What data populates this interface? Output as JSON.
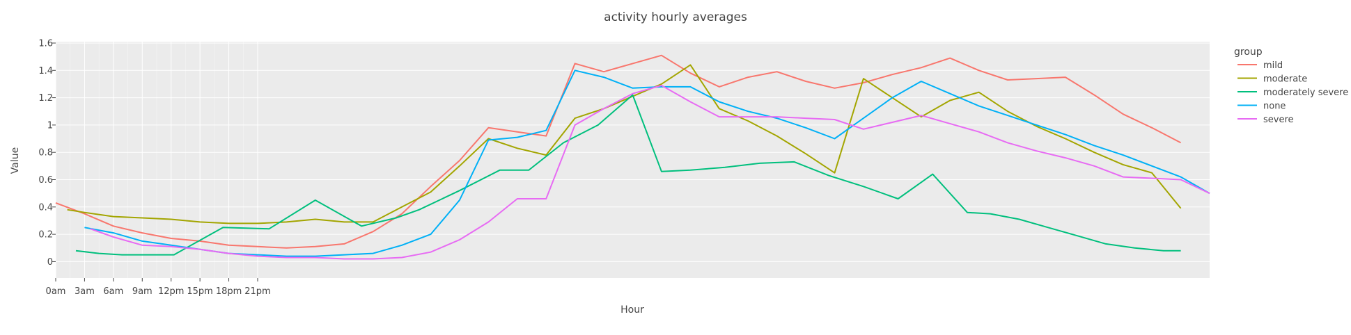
{
  "chart_data": {
    "type": "line",
    "title": "activity hourly averages",
    "xlabel": "Hour",
    "ylabel": "Value",
    "x_tick_labels": [
      "0am",
      "3am",
      "6am",
      "9am",
      "12pm",
      "15pm",
      "18pm",
      "21pm"
    ],
    "y_ticks": [
      0,
      0.2,
      0.4,
      0.6,
      0.8,
      1,
      1.2,
      1.4,
      1.6
    ],
    "y_tick_labels": [
      "0",
      "0.2",
      "0.4",
      "0.6",
      "0.8",
      "1",
      "1.2",
      "1.4",
      "1.6"
    ],
    "ylim": [
      -0.12,
      1.61
    ],
    "xlim": [
      0,
      40
    ],
    "legend": {
      "title": "group",
      "placement": "right"
    },
    "grid": true,
    "series": [
      {
        "name": "mild",
        "color": "#F8766D",
        "x": [
          0,
          1,
          2,
          3,
          4,
          5,
          6,
          7,
          8,
          9,
          10,
          11,
          12,
          13,
          14,
          15,
          16,
          17,
          18,
          19,
          20,
          21,
          22,
          23,
          24,
          25,
          26,
          27,
          28,
          29,
          30,
          31,
          32,
          33,
          34,
          35,
          36,
          37,
          38,
          39
        ],
        "values": [
          0.43,
          0.35,
          0.26,
          0.21,
          0.17,
          0.15,
          0.12,
          0.11,
          0.1,
          0.11,
          0.13,
          0.22,
          0.35,
          0.55,
          0.74,
          0.98,
          0.95,
          0.92,
          1.45,
          1.39,
          1.45,
          1.51,
          1.38,
          1.28,
          1.35,
          1.39,
          1.32,
          1.27,
          1.31,
          1.37,
          1.42,
          1.49,
          1.4,
          1.33,
          1.34,
          1.35,
          1.22,
          1.08,
          0.98,
          0.87
        ]
      },
      {
        "name": "moderate",
        "color": "#A3A500",
        "x": [
          0.4,
          1,
          2,
          3,
          4,
          5,
          6,
          7,
          8,
          9,
          10,
          11,
          12,
          13,
          14,
          15,
          16,
          17,
          18,
          19,
          20,
          21,
          22,
          23,
          24,
          25,
          26,
          27,
          28,
          29,
          30,
          31,
          32,
          33,
          34,
          35,
          36,
          37,
          38,
          39
        ],
        "values": [
          0.38,
          0.36,
          0.33,
          0.32,
          0.31,
          0.29,
          0.28,
          0.28,
          0.29,
          0.31,
          0.29,
          0.29,
          0.4,
          0.51,
          0.7,
          0.9,
          0.83,
          0.78,
          1.05,
          1.12,
          1.21,
          1.3,
          1.44,
          1.12,
          1.03,
          0.92,
          0.79,
          0.65,
          1.34,
          1.2,
          1.06,
          1.18,
          1.24,
          1.1,
          0.99,
          0.9,
          0.8,
          0.71,
          0.65,
          0.39
        ]
      },
      {
        "name": "moderately severe",
        "color": "#00BF7D",
        "x": [
          0.7,
          1.5,
          2.3,
          3.1,
          4.1,
          5.8,
          7.4,
          9.0,
          10.6,
          11.8,
          12.6,
          14.0,
          15.4,
          16.4,
          17.6,
          18.8,
          20.0,
          21.0,
          22.0,
          23.2,
          24.4,
          25.6,
          26.8,
          28.0,
          29.2,
          30.4,
          31.6,
          32.4,
          33.4,
          34.4,
          35.4,
          36.4,
          37.4,
          38.4,
          39.0
        ],
        "values": [
          0.08,
          0.06,
          0.05,
          0.05,
          0.05,
          0.25,
          0.24,
          0.45,
          0.26,
          0.32,
          0.38,
          0.52,
          0.67,
          0.67,
          0.87,
          1.0,
          1.22,
          0.66,
          0.67,
          0.69,
          0.72,
          0.73,
          0.63,
          0.55,
          0.46,
          0.64,
          0.36,
          0.35,
          0.31,
          0.25,
          0.19,
          0.13,
          0.1,
          0.08,
          0.08
        ]
      },
      {
        "name": "none",
        "color": "#00B0F6",
        "x": [
          1,
          2,
          3,
          4,
          5,
          6,
          7,
          8,
          9,
          10,
          11,
          12,
          13,
          14,
          15,
          16,
          17,
          18,
          19,
          20,
          21,
          22,
          23,
          24,
          25,
          26,
          27,
          28,
          29,
          30,
          31,
          32,
          33,
          34,
          35,
          36,
          37,
          38,
          39,
          40
        ],
        "values": [
          0.25,
          0.21,
          0.15,
          0.12,
          0.09,
          0.06,
          0.05,
          0.04,
          0.04,
          0.05,
          0.06,
          0.12,
          0.2,
          0.45,
          0.89,
          0.91,
          0.96,
          1.4,
          1.35,
          1.27,
          1.28,
          1.28,
          1.17,
          1.1,
          1.05,
          0.98,
          0.9,
          1.05,
          1.2,
          1.32,
          1.23,
          1.14,
          1.07,
          1.0,
          0.93,
          0.85,
          0.78,
          0.7,
          0.62,
          0.5
        ]
      },
      {
        "name": "severe",
        "color": "#E76BF3",
        "x": [
          1.2,
          2,
          3,
          4,
          5,
          6,
          7,
          8,
          9,
          10,
          11,
          12,
          13,
          14,
          15,
          16,
          17,
          18,
          19,
          20,
          21,
          22,
          23,
          24,
          25,
          26,
          27,
          28,
          29,
          30,
          31,
          32,
          33,
          34,
          35,
          36,
          37,
          38,
          39,
          40
        ],
        "values": [
          0.24,
          0.18,
          0.12,
          0.11,
          0.09,
          0.06,
          0.04,
          0.03,
          0.03,
          0.02,
          0.02,
          0.03,
          0.07,
          0.16,
          0.29,
          0.46,
          0.46,
          1.0,
          1.12,
          1.23,
          1.29,
          1.17,
          1.06,
          1.06,
          1.06,
          1.05,
          1.04,
          0.97,
          1.02,
          1.07,
          1.01,
          0.95,
          0.87,
          0.81,
          0.76,
          0.7,
          0.62,
          0.61,
          0.6,
          0.5
        ]
      }
    ]
  }
}
